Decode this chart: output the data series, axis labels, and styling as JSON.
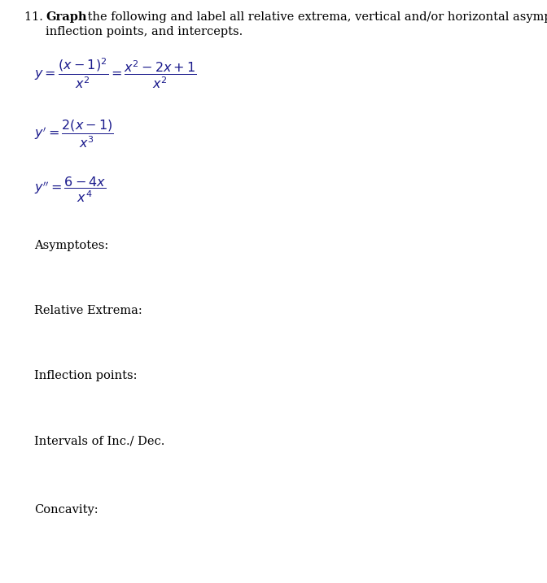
{
  "background_color": "#ffffff",
  "fig_width": 6.72,
  "fig_height": 7.17,
  "dpi": 100,
  "text_color": "#000000",
  "math_color": "#1a1a8c",
  "font_size_header": 10.5,
  "font_size_math": 11.5,
  "font_size_labels": 10.5,
  "label_asymptotes": "Asymptotes:",
  "label_extrema": "Relative Extrema:",
  "label_inflection": "Inflection points:",
  "label_intervals": "Intervals of Inc./ Dec.",
  "label_concavity": "Concavity:"
}
